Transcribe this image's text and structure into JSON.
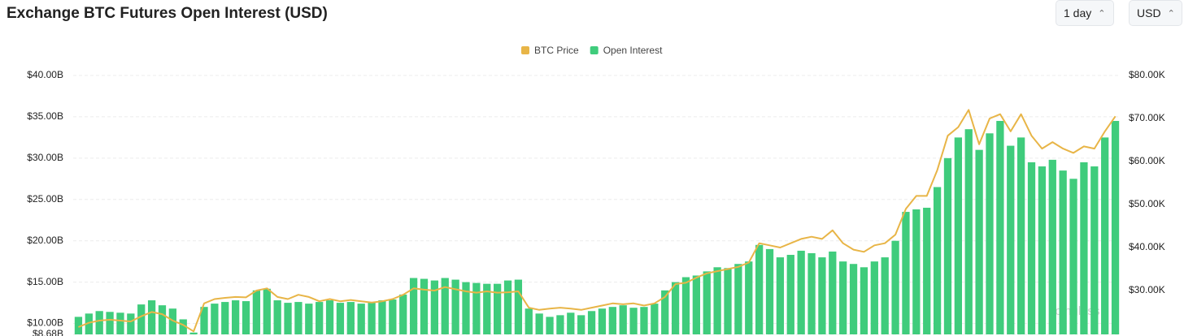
{
  "chart_data": {
    "type": "bar",
    "title": "Exchange BTC Futures Open Interest (USD)",
    "controls": [
      "1 day",
      "USD"
    ],
    "watermark": "coinglass",
    "series": [
      {
        "name": "BTC Price",
        "type": "line",
        "axis": "y2",
        "color": "#e8b547",
        "values": [
          21.5,
          22.5,
          23,
          23.2,
          23,
          22.8,
          24,
          25,
          24.5,
          23,
          22,
          20.5,
          27,
          28,
          28.3,
          28.5,
          28.4,
          30,
          30.5,
          28.5,
          28,
          29,
          28.5,
          27.5,
          28,
          27.5,
          27.8,
          27.5,
          27.2,
          27.5,
          28,
          29,
          30.5,
          30.2,
          30,
          30.8,
          30.3,
          29.8,
          29.5,
          29.8,
          29.5,
          29.6,
          29.8,
          26,
          25.5,
          25.8,
          26,
          25.8,
          25.5,
          26,
          26.5,
          27,
          26.8,
          27,
          26.5,
          27,
          28.5,
          31.5,
          31.8,
          33,
          34,
          34.5,
          35,
          35.5,
          36.5,
          41,
          40.5,
          40,
          41,
          42,
          42.5,
          42,
          44,
          41,
          39.5,
          39,
          40.5,
          41,
          43,
          49,
          52,
          52,
          58,
          66,
          68,
          72,
          64,
          70,
          71,
          67,
          71,
          66,
          63,
          64.5,
          63,
          62,
          63.5,
          63,
          67,
          70.5
        ]
      },
      {
        "name": "Open Interest",
        "type": "bar",
        "color": "#3fcc7c",
        "values": [
          10.8,
          11.2,
          11.5,
          11.4,
          11.3,
          11.2,
          12.3,
          12.8,
          12.2,
          11.8,
          10.5,
          8.9,
          12,
          12.4,
          12.6,
          12.8,
          12.7,
          14,
          14.2,
          12.8,
          12.5,
          12.6,
          12.4,
          12.6,
          12.8,
          12.5,
          12.6,
          12.4,
          12.6,
          12.8,
          12.9,
          13.5,
          15.5,
          15.4,
          15.2,
          15.5,
          15.3,
          15,
          14.9,
          14.8,
          14.8,
          15.2,
          15.3,
          11.8,
          11.2,
          10.8,
          11,
          11.3,
          11,
          11.5,
          11.8,
          12,
          12.2,
          11.9,
          12,
          12.4,
          14,
          15,
          15.6,
          15.8,
          16.3,
          16.8,
          16.7,
          17.2,
          17.5,
          19.5,
          19,
          18,
          18.3,
          18.8,
          18.5,
          18,
          18.7,
          17.5,
          17.2,
          16.8,
          17.5,
          18,
          20,
          23.5,
          23.8,
          24,
          26.5,
          30,
          32.5,
          33.5,
          31,
          33,
          34.5,
          31.5,
          32.5,
          29.5,
          29,
          29.8,
          28.5,
          27.5,
          29.5,
          29,
          32.5,
          34.5
        ]
      }
    ],
    "ylim": [
      8.68,
      40
    ],
    "yticks": [
      {
        "value": 8.68,
        "label": "$8.68B"
      },
      {
        "value": 10,
        "label": "$10.00B"
      },
      {
        "value": 15,
        "label": "$15.00B"
      },
      {
        "value": 20,
        "label": "$20.00B"
      },
      {
        "value": 25,
        "label": "$25.00B"
      },
      {
        "value": 30,
        "label": "$30.00B"
      },
      {
        "value": 35,
        "label": "$35.00B"
      },
      {
        "value": 40,
        "label": "$40.00B"
      }
    ],
    "y2lim": [
      19.8,
      80
    ],
    "y2ticks": [
      {
        "value": 30,
        "label": "$30.00K"
      },
      {
        "value": 40,
        "label": "$40.00K"
      },
      {
        "value": 50,
        "label": "$50.00K"
      },
      {
        "value": 60,
        "label": "$60.00K"
      },
      {
        "value": 70,
        "label": "$70.00K"
      },
      {
        "value": 80,
        "label": "$80.00K"
      }
    ],
    "grid": true,
    "legend": "top"
  }
}
